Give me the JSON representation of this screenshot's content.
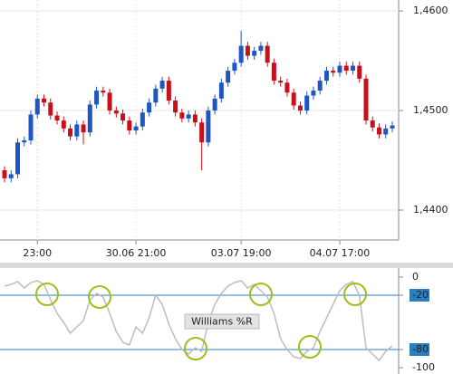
{
  "chart_data": [
    {
      "type": "candlestick",
      "categories": [
        null,
        null,
        null,
        null,
        null,
        "23:00",
        null,
        null,
        null,
        null,
        null,
        null,
        null,
        null,
        null,
        null,
        null,
        null,
        null,
        null,
        "30.06 21:00",
        null,
        null,
        null,
        null,
        null,
        null,
        null,
        null,
        null,
        null,
        null,
        null,
        null,
        null,
        null,
        "03.07 19:00",
        null,
        null,
        null,
        null,
        null,
        null,
        null,
        null,
        null,
        null,
        null,
        null,
        null,
        null,
        "04.07 17:00",
        null,
        null,
        null,
        null,
        null,
        null,
        null,
        null
      ],
      "open": [
        1.444,
        1.4432,
        1.4436,
        1.4468,
        1.447,
        1.4496,
        1.4512,
        1.4508,
        1.4495,
        1.449,
        1.4482,
        1.4474,
        1.4486,
        1.4478,
        1.4506,
        1.452,
        1.4518,
        1.45,
        1.4497,
        1.449,
        1.448,
        1.4484,
        1.4498,
        1.4508,
        1.4522,
        1.453,
        1.451,
        1.4498,
        1.4492,
        1.4496,
        1.4488,
        1.4468,
        1.45,
        1.4512,
        1.4528,
        1.454,
        1.4548,
        1.4565,
        1.4555,
        1.456,
        1.4565,
        1.4548,
        1.453,
        1.4528,
        1.4518,
        1.4505,
        1.45,
        1.4515,
        1.452,
        1.453,
        1.454,
        1.4538,
        1.4545,
        1.454,
        1.4545,
        1.4532,
        1.449,
        1.4483,
        1.4476,
        1.4482
      ],
      "high": [
        1.4444,
        1.444,
        1.4472,
        1.4474,
        1.45,
        1.4516,
        1.4516,
        1.4512,
        1.4499,
        1.4494,
        1.4486,
        1.449,
        1.449,
        1.451,
        1.4524,
        1.4524,
        1.4522,
        1.4504,
        1.4501,
        1.4494,
        1.4488,
        1.4502,
        1.4512,
        1.4526,
        1.4534,
        1.4534,
        1.4514,
        1.4502,
        1.45,
        1.45,
        1.4492,
        1.4504,
        1.4516,
        1.4532,
        1.4544,
        1.4552,
        1.458,
        1.4569,
        1.4564,
        1.4569,
        1.4569,
        1.4552,
        1.4534,
        1.4532,
        1.4522,
        1.4509,
        1.4519,
        1.4524,
        1.4534,
        1.4544,
        1.4544,
        1.4549,
        1.4549,
        1.4549,
        1.4549,
        1.4536,
        1.4494,
        1.4487,
        1.4486,
        1.4489
      ],
      "low": [
        1.4428,
        1.4428,
        1.4432,
        1.4464,
        1.4466,
        1.4492,
        1.4504,
        1.4491,
        1.4486,
        1.4478,
        1.447,
        1.447,
        1.4466,
        1.4474,
        1.4502,
        1.4514,
        1.4496,
        1.4493,
        1.4486,
        1.4476,
        1.4476,
        1.448,
        1.4494,
        1.4504,
        1.4518,
        1.4506,
        1.4494,
        1.4488,
        1.4488,
        1.4484,
        1.444,
        1.4464,
        1.4496,
        1.4508,
        1.4524,
        1.4536,
        1.4544,
        1.4551,
        1.4551,
        1.4556,
        1.4544,
        1.4526,
        1.4524,
        1.4514,
        1.4501,
        1.4496,
        1.4496,
        1.4511,
        1.4516,
        1.4526,
        1.4534,
        1.4534,
        1.4536,
        1.4536,
        1.4528,
        1.4486,
        1.4479,
        1.4472,
        1.4472,
        1.4478
      ],
      "close": [
        1.4432,
        1.4436,
        1.4468,
        1.447,
        1.4496,
        1.4512,
        1.4508,
        1.4495,
        1.449,
        1.4482,
        1.4474,
        1.4486,
        1.4478,
        1.4506,
        1.452,
        1.4518,
        1.45,
        1.4497,
        1.449,
        1.448,
        1.4484,
        1.4498,
        1.4508,
        1.4522,
        1.453,
        1.451,
        1.4498,
        1.4492,
        1.4496,
        1.4488,
        1.4468,
        1.45,
        1.4512,
        1.4528,
        1.454,
        1.4548,
        1.4565,
        1.4555,
        1.456,
        1.4565,
        1.4548,
        1.453,
        1.4528,
        1.4518,
        1.4505,
        1.45,
        1.4515,
        1.452,
        1.453,
        1.454,
        1.4538,
        1.4545,
        1.454,
        1.4545,
        1.4532,
        1.449,
        1.4483,
        1.4476,
        1.4482,
        1.4485
      ],
      "up_color": "#1f56c4",
      "down_color": "#c8101c",
      "ylim": [
        1.437,
        1.4611
      ],
      "yticks": [
        {
          "value": 1.46,
          "label": "1,4600"
        },
        {
          "value": 1.45,
          "label": "1,4500"
        },
        {
          "value": 1.44,
          "label": "1,4400"
        }
      ],
      "grid": true
    },
    {
      "type": "line",
      "title": "Williams %R",
      "values": [
        -10,
        -8,
        -5,
        -12,
        -6,
        -4,
        -8,
        -25,
        -40,
        -50,
        -62,
        -55,
        -48,
        -25,
        -18,
        -22,
        -40,
        -60,
        -72,
        -75,
        -55,
        -62,
        -45,
        -20,
        -30,
        -52,
        -68,
        -80,
        -85,
        -78,
        -82,
        -50,
        -30,
        -18,
        -10,
        -6,
        -4,
        -12,
        -8,
        -15,
        -22,
        -40,
        -68,
        -80,
        -88,
        -90,
        -82,
        -78,
        -60,
        -45,
        -30,
        -15,
        -8,
        -5,
        -20,
        -78,
        -85,
        -92,
        -82,
        -76
      ],
      "color": "#bdbdbd",
      "levels": [
        -20,
        -80
      ],
      "level_color": "#2a7fc0",
      "ylim": [
        -104,
        8
      ],
      "yticks": [
        0,
        -20,
        -80,
        -100
      ]
    }
  ]
}
